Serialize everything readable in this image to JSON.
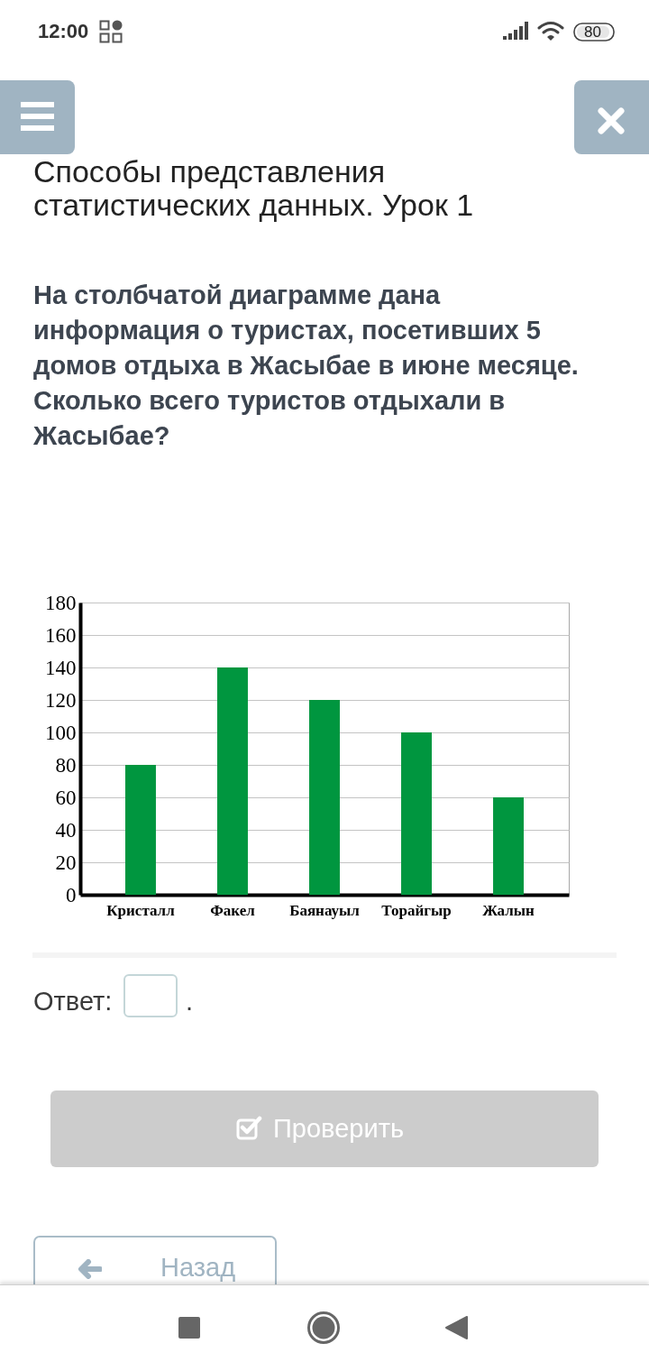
{
  "chart_data": {
    "type": "bar",
    "title": "Способы представления статистических данных. Урок 1",
    "subtitle": "На столбчатой диаграмме дана информация о туристах, посетивших 5 домов отдыха в Жасыбае в июне месяце. Сколько всего туристов отдыхали в Жасыбае?",
    "annotations": [
      "12:00",
      "80",
      "Ответ:",
      ".",
      "Проверить",
      "Назад"
    ],
    "categories": [
      "Кристалл",
      "Факел",
      "Баянауыл",
      "Торайгыр",
      "Жалын"
    ],
    "values": [
      80,
      140,
      120,
      100,
      60
    ],
    "color": "#00963f",
    "ylim": [
      0,
      180
    ],
    "yticks": [
      0,
      20,
      40,
      60,
      80,
      100,
      120,
      140,
      160,
      180
    ],
    "grid": "y"
  }
}
